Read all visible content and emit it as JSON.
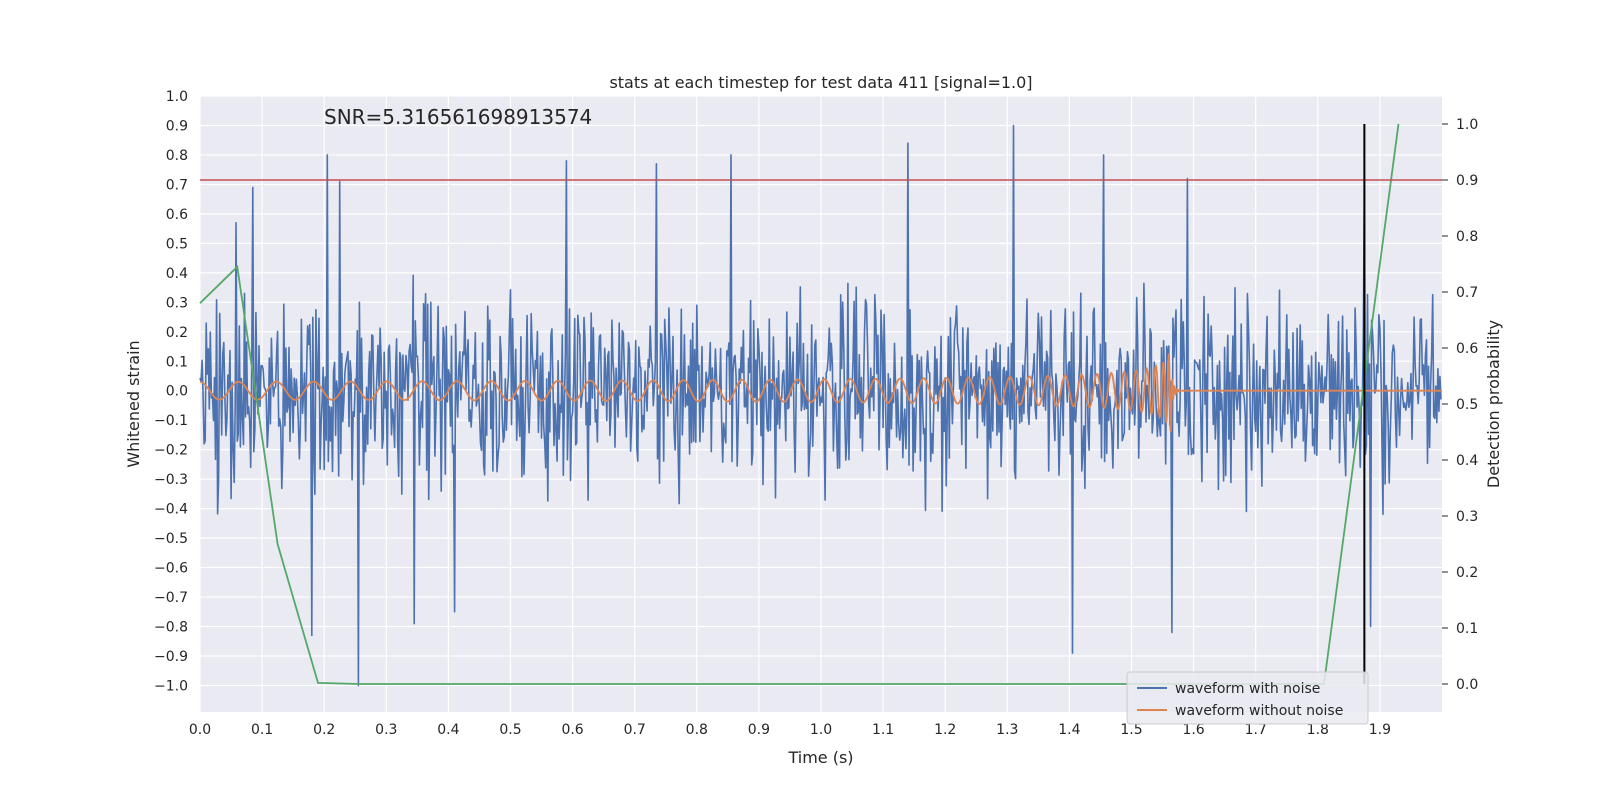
{
  "chart_data": {
    "type": "line",
    "title": "stats at each timestep for test data 411 [signal=1.0]",
    "annotation": "SNR=5.316561698913574",
    "xlabel": "Time (s)",
    "ylabel": "Whitened strain",
    "y2label": "Detection probability",
    "xlim": [
      0.0,
      2.0
    ],
    "ylim": [
      -1.09,
      1.0
    ],
    "y2lim": [
      -0.05,
      1.05
    ],
    "grid": true,
    "x_ticks": [
      0.0,
      0.1,
      0.2,
      0.3,
      0.4,
      0.5,
      0.6,
      0.7,
      0.8,
      0.9,
      1.0,
      1.1,
      1.2,
      1.3,
      1.4,
      1.5,
      1.6,
      1.7,
      1.8,
      1.9
    ],
    "x_tick_labels": [
      "0.0",
      "0.1",
      "0.2",
      "0.3",
      "0.4",
      "0.5",
      "0.6",
      "0.7",
      "0.8",
      "0.9",
      "1.0",
      "1.1",
      "1.2",
      "1.3",
      "1.4",
      "1.5",
      "1.6",
      "1.7",
      "1.8",
      "1.9"
    ],
    "y_ticks": [
      1.0,
      0.9,
      0.8,
      0.7,
      0.6,
      0.5,
      0.4,
      0.3,
      0.2,
      0.1,
      0.0,
      -0.1,
      -0.2,
      -0.3,
      -0.4,
      -0.5,
      -0.6,
      -0.7,
      -0.8,
      -0.9,
      -1.0
    ],
    "y_tick_labels": [
      "1.0",
      "0.9",
      "0.8",
      "0.7",
      "0.6",
      "0.5",
      "0.4",
      "0.3",
      "0.2",
      "0.1",
      "0.0",
      "−0.1",
      "−0.2",
      "−0.3",
      "−0.4",
      "−0.5",
      "−0.6",
      "−0.7",
      "−0.8",
      "−0.9",
      "−1.0"
    ],
    "y2_ticks": [
      1.0,
      0.9,
      0.8,
      0.7,
      0.6,
      0.5,
      0.4,
      0.3,
      0.2,
      0.1,
      0.0
    ],
    "y2_tick_labels": [
      "1.0",
      "0.9",
      "0.8",
      "0.7",
      "0.6",
      "0.5",
      "0.4",
      "0.3",
      "0.2",
      "0.1",
      "0.0"
    ],
    "colors": {
      "background": "#eaeaf2",
      "grid": "#ffffff",
      "noisy": "#4c72b0",
      "clean": "#dd8452",
      "probability": "#55a868",
      "threshold": "#c44e52",
      "marker": "#000000"
    },
    "legend": {
      "position": "lower right",
      "entries": [
        "waveform with noise",
        "waveform without noise"
      ]
    },
    "series": [
      {
        "name": "waveform with noise",
        "axis": "left",
        "style": "dense noisy oscillation (values estimated)",
        "peaks": [
          {
            "x": 0.058,
            "y": 0.57
          },
          {
            "x": 0.085,
            "y": 0.69
          },
          {
            "x": 0.205,
            "y": 0.8
          },
          {
            "x": 0.225,
            "y": 0.71
          },
          {
            "x": 0.59,
            "y": 0.78
          },
          {
            "x": 0.735,
            "y": 0.77
          },
          {
            "x": 0.855,
            "y": 0.8
          },
          {
            "x": 1.14,
            "y": 0.84
          },
          {
            "x": 1.31,
            "y": 0.9
          },
          {
            "x": 1.455,
            "y": 0.8
          },
          {
            "x": 1.59,
            "y": 0.72
          },
          {
            "x": 1.875,
            "y": 0.72
          }
        ],
        "troughs": [
          {
            "x": 0.18,
            "y": -0.83
          },
          {
            "x": 0.255,
            "y": -1.0
          },
          {
            "x": 0.345,
            "y": -0.79
          },
          {
            "x": 0.41,
            "y": -0.75
          },
          {
            "x": 1.405,
            "y": -0.89
          },
          {
            "x": 1.565,
            "y": -0.82
          },
          {
            "x": 1.885,
            "y": -0.8
          }
        ]
      },
      {
        "name": "waveform without noise",
        "axis": "left",
        "style": "chirp ending at merger (values estimated)",
        "merger_time": 1.565,
        "amplitude_start": 0.03,
        "amplitude_peak": 0.2
      },
      {
        "axis": "right",
        "x": [
          0.0,
          0.06,
          0.125,
          0.19,
          0.255,
          1.81,
          1.93
        ],
        "y": [
          0.68,
          0.745,
          0.25,
          0.002,
          0.0,
          0.0,
          1.0
        ]
      }
    ],
    "threshold": {
      "axis": "right",
      "y": 0.9
    },
    "marker": {
      "x": 1.875,
      "y_from": 0.0,
      "y_to": 1.0,
      "axis": "right"
    }
  }
}
